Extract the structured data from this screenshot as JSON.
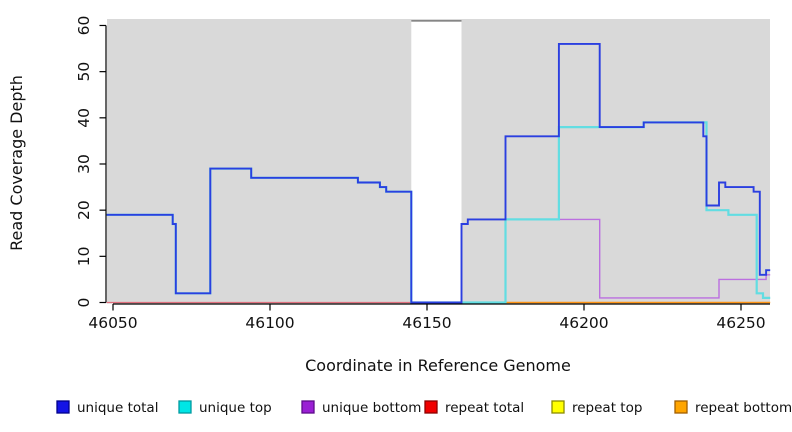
{
  "figure": {
    "xlabel": "Coordinate in Reference Genome",
    "ylabel": "Read Coverage Depth"
  },
  "chart_data": {
    "type": "line",
    "subtype": "step-coverage-plot",
    "title": "",
    "xlabel": "Coordinate in Reference Genome",
    "ylabel": "Read Coverage Depth",
    "xlim": [
      46048,
      46259.3
    ],
    "ylim": [
      0,
      61
    ],
    "x_ticks": [
      46050,
      46100,
      46150,
      46200,
      46250
    ],
    "y_ticks": [
      0,
      10,
      20,
      30,
      40,
      50,
      60
    ],
    "grid": false,
    "plot_background": "#d9d9d9",
    "masked_region": {
      "x_start": 46145,
      "x_end": 46161,
      "y_top": 61,
      "fill": "#ffffff",
      "border_color": "#7a7a7a"
    },
    "legend_position": "bottom",
    "series": [
      {
        "name": "repeat total",
        "legend_color": "#f00000",
        "line_color": "#e2707e",
        "width": 1.3,
        "x_end": 46145,
        "points": [
          [
            46048,
            0
          ]
        ]
      },
      {
        "name": "repeat top",
        "legend_color": "#ffff00",
        "line_color": "#8cc88c",
        "width": 1.3,
        "x_end": 46175,
        "points": [
          [
            46161,
            0
          ]
        ]
      },
      {
        "name": "repeat bottom",
        "legend_color": "#ffa500",
        "line_color": "#ff9414",
        "width": 1.6,
        "x_end": 46259.3,
        "points": [
          [
            46175,
            0
          ]
        ]
      },
      {
        "name": "unique bottom",
        "legend_color": "#9a1fd4",
        "line_color": "#bb6fe0",
        "width": 1.4,
        "x_end": 46259.3,
        "points": [
          [
            46161,
            0
          ],
          [
            46161,
            17
          ],
          [
            46163,
            18
          ],
          [
            46205,
            1
          ],
          [
            46243,
            5
          ],
          [
            46258,
            6
          ]
        ]
      },
      {
        "name": "unique top",
        "legend_color": "#00e6e6",
        "line_color": "#62dde2",
        "width": 2.2,
        "x_end": 46259.3,
        "points": [
          [
            46048,
            19
          ],
          [
            46069,
            17
          ],
          [
            46070,
            2
          ],
          [
            46081,
            29
          ],
          [
            46094,
            27
          ],
          [
            46128,
            26
          ],
          [
            46135,
            25
          ],
          [
            46137,
            24
          ],
          [
            46145,
            0
          ],
          [
            46175,
            18
          ],
          [
            46192,
            38
          ],
          [
            46219,
            39
          ],
          [
            46239,
            20
          ],
          [
            46246,
            19
          ],
          [
            46255,
            2
          ],
          [
            46257,
            1
          ]
        ]
      },
      {
        "name": "unique total",
        "legend_color": "#1414e6",
        "line_color": "#2b3fe0",
        "width": 1.9,
        "x_end": 46259.3,
        "points": [
          [
            46048,
            19
          ],
          [
            46069,
            17
          ],
          [
            46070,
            2
          ],
          [
            46081,
            29
          ],
          [
            46094,
            27
          ],
          [
            46128,
            26
          ],
          [
            46135,
            25
          ],
          [
            46137,
            24
          ],
          [
            46145,
            0
          ],
          [
            46161,
            17
          ],
          [
            46163,
            18
          ],
          [
            46175,
            36
          ],
          [
            46192,
            56
          ],
          [
            46205,
            38
          ],
          [
            46219,
            39
          ],
          [
            46238,
            36
          ],
          [
            46239,
            21
          ],
          [
            46243,
            26
          ],
          [
            46245,
            25
          ],
          [
            46254,
            24
          ],
          [
            46256,
            6
          ],
          [
            46258,
            7
          ]
        ]
      }
    ]
  },
  "legend": {
    "items": [
      {
        "label": "unique total",
        "color": "#1414e6",
        "border": "#00008b"
      },
      {
        "label": "unique top",
        "color": "#00e6e6",
        "border": "#009aa0"
      },
      {
        "label": "unique bottom",
        "color": "#9a1fd4",
        "border": "#5e0b8b"
      },
      {
        "label": "repeat total",
        "color": "#f00000",
        "border": "#8b0000"
      },
      {
        "label": "repeat top",
        "color": "#ffff00",
        "border": "#8b8b00"
      },
      {
        "label": "repeat bottom",
        "color": "#ffa500",
        "border": "#a05e00"
      }
    ]
  }
}
